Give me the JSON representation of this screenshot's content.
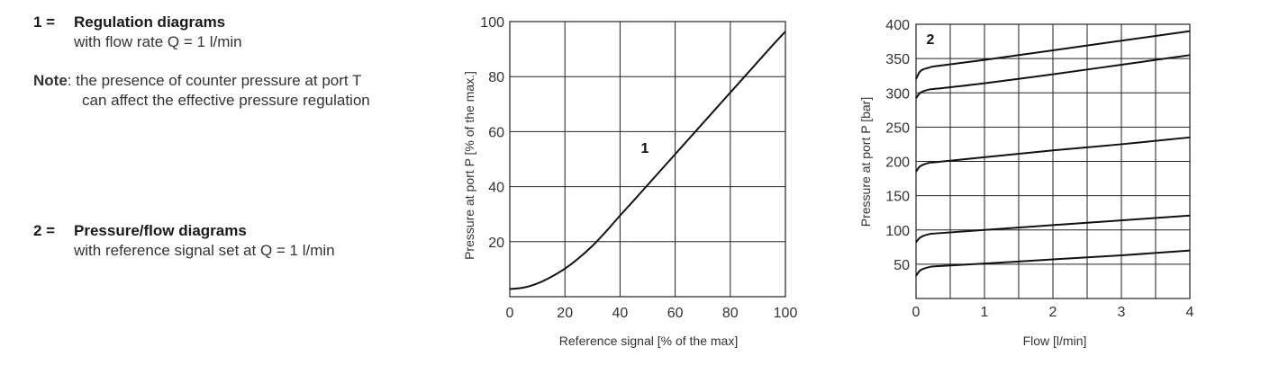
{
  "legend": {
    "items": [
      {
        "number": "1 =",
        "heading": "Regulation diagrams",
        "sub": "with flow rate Q = 1 l/min"
      },
      {
        "number": "2 =",
        "heading": "Pressure/flow diagrams",
        "sub": "with reference signal set at Q = 1 l/min"
      }
    ],
    "note": {
      "label": "Note",
      "line1": ": the presence of counter pressure at port T",
      "line2": "can affect the effective pressure regulation"
    }
  },
  "chart_data": [
    {
      "type": "line",
      "curve_label": "1",
      "xlabel": "Reference signal  [% of the max]",
      "ylabel": "Pressure at port P [% of the max.]",
      "xlim": [
        0,
        100
      ],
      "ylim": [
        0,
        100
      ],
      "xticks": [
        "0",
        "20",
        "40",
        "60",
        "80",
        "100"
      ],
      "yticks": [
        "20",
        "40",
        "60",
        "80",
        "100"
      ],
      "grid": true,
      "series": [
        {
          "x": [
            0,
            5,
            10,
            15,
            20,
            25,
            30,
            35,
            40,
            45,
            50,
            55,
            60,
            65,
            70,
            75,
            80,
            85,
            90,
            95,
            100
          ],
          "values": [
            2.8,
            3.3,
            4.8,
            7.2,
            10.2,
            14,
            18.5,
            23.8,
            29.5,
            35,
            40.6,
            46.2,
            51.8,
            57.4,
            63,
            68.6,
            74.2,
            79.8,
            85.4,
            91,
            96.4
          ]
        }
      ]
    },
    {
      "type": "line",
      "curve_label": "2",
      "xlabel": "Flow [l/min]",
      "ylabel": "Pressure at port P [bar]",
      "xlim": [
        0,
        4
      ],
      "ylim": [
        0,
        400
      ],
      "xticks": [
        "0",
        "1",
        "2",
        "3",
        "4"
      ],
      "yticks": [
        "50",
        "100",
        "150",
        "200",
        "250",
        "300",
        "350",
        "400"
      ],
      "grid": true,
      "series": [
        {
          "x": [
            0,
            0.05,
            0.1,
            0.2,
            0.3,
            1,
            2,
            3,
            4
          ],
          "values": [
            33,
            40,
            43,
            46,
            47,
            51,
            57,
            63,
            70
          ]
        },
        {
          "x": [
            0,
            0.05,
            0.1,
            0.2,
            0.3,
            1,
            2,
            3,
            4
          ],
          "values": [
            82,
            88,
            91,
            94,
            95,
            100,
            107,
            114,
            121
          ]
        },
        {
          "x": [
            0,
            0.05,
            0.1,
            0.2,
            0.3,
            1,
            2,
            3,
            4
          ],
          "values": [
            185,
            192,
            195,
            198,
            199,
            206,
            216,
            225,
            235
          ]
        },
        {
          "x": [
            0,
            0.05,
            0.1,
            0.2,
            0.3,
            1,
            2,
            3,
            4
          ],
          "values": [
            292,
            299,
            302,
            305,
            306,
            314,
            327,
            341,
            355
          ]
        },
        {
          "x": [
            0,
            0.05,
            0.1,
            0.2,
            0.3,
            1,
            2,
            3,
            4
          ],
          "values": [
            320,
            330,
            334,
            337,
            339,
            348,
            362,
            376,
            390
          ]
        }
      ]
    }
  ]
}
